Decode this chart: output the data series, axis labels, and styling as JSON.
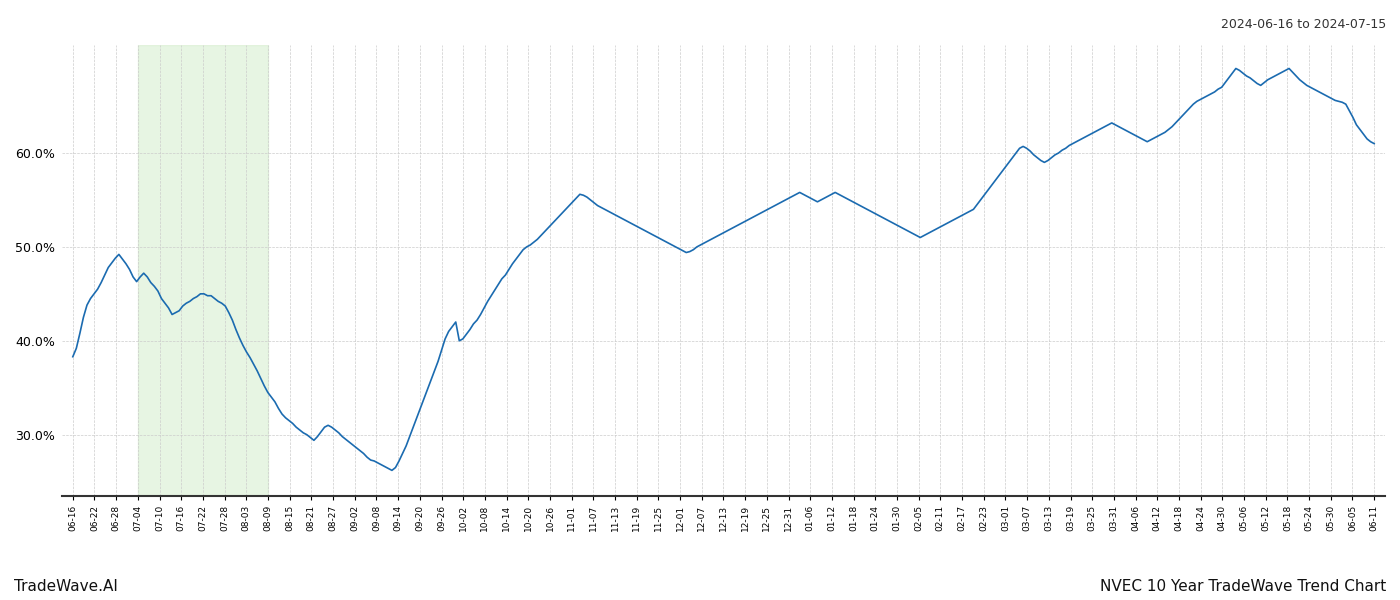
{
  "title_top_right": "2024-06-16 to 2024-07-15",
  "title_bottom_left": "TradeWave.AI",
  "title_bottom_right": "NVEC 10 Year TradeWave Trend Chart",
  "line_color": "#1b6bb0",
  "line_width": 1.2,
  "bg_color": "#ffffff",
  "grid_color": "#cccccc",
  "shade_color": "#d4edcc",
  "shade_alpha": 0.55,
  "ylim": [
    0.235,
    0.715
  ],
  "yticks": [
    0.3,
    0.4,
    0.5,
    0.6
  ],
  "xtick_labels": [
    "06-16",
    "06-22",
    "06-28",
    "07-04",
    "07-10",
    "07-16",
    "07-22",
    "07-28",
    "08-03",
    "08-09",
    "08-15",
    "08-21",
    "08-27",
    "09-02",
    "09-08",
    "09-14",
    "09-20",
    "09-26",
    "10-02",
    "10-08",
    "10-14",
    "10-20",
    "10-26",
    "11-01",
    "11-07",
    "11-13",
    "11-19",
    "11-25",
    "12-01",
    "12-07",
    "12-13",
    "12-19",
    "12-25",
    "12-31",
    "01-06",
    "01-12",
    "01-18",
    "01-24",
    "01-30",
    "02-05",
    "02-11",
    "02-17",
    "02-23",
    "03-01",
    "03-07",
    "03-13",
    "03-19",
    "03-25",
    "03-31",
    "04-06",
    "04-12",
    "04-18",
    "04-24",
    "04-30",
    "05-06",
    "05-12",
    "05-18",
    "05-24",
    "05-30",
    "06-05",
    "06-11"
  ],
  "shade_xstart": 3,
  "shade_xend": 9,
  "values": [
    0.383,
    0.392,
    0.408,
    0.425,
    0.438,
    0.445,
    0.45,
    0.455,
    0.462,
    0.47,
    0.478,
    0.483,
    0.488,
    0.492,
    0.487,
    0.482,
    0.476,
    0.468,
    0.463,
    0.468,
    0.472,
    0.468,
    0.462,
    0.458,
    0.453,
    0.445,
    0.44,
    0.435,
    0.428,
    0.43,
    0.432,
    0.437,
    0.44,
    0.442,
    0.445,
    0.447,
    0.45,
    0.45,
    0.448,
    0.448,
    0.445,
    0.442,
    0.44,
    0.437,
    0.43,
    0.422,
    0.412,
    0.403,
    0.395,
    0.388,
    0.382,
    0.375,
    0.368,
    0.36,
    0.352,
    0.345,
    0.34,
    0.335,
    0.328,
    0.322,
    0.318,
    0.315,
    0.312,
    0.308,
    0.305,
    0.302,
    0.3,
    0.297,
    0.294,
    0.298,
    0.303,
    0.308,
    0.31,
    0.308,
    0.305,
    0.302,
    0.298,
    0.295,
    0.292,
    0.289,
    0.286,
    0.283,
    0.28,
    0.276,
    0.273,
    0.272,
    0.27,
    0.268,
    0.266,
    0.264,
    0.262,
    0.265,
    0.272,
    0.28,
    0.288,
    0.298,
    0.308,
    0.318,
    0.328,
    0.338,
    0.348,
    0.358,
    0.368,
    0.378,
    0.39,
    0.402,
    0.41,
    0.415,
    0.42,
    0.4,
    0.402,
    0.407,
    0.412,
    0.418,
    0.422,
    0.428,
    0.435,
    0.442,
    0.448,
    0.454,
    0.46,
    0.466,
    0.47,
    0.476,
    0.482,
    0.487,
    0.492,
    0.497,
    0.5,
    0.502,
    0.505,
    0.508,
    0.512,
    0.516,
    0.52,
    0.524,
    0.528,
    0.532,
    0.536,
    0.54,
    0.544,
    0.548,
    0.552,
    0.556,
    0.555,
    0.553,
    0.55,
    0.547,
    0.544,
    0.542,
    0.54,
    0.538,
    0.536,
    0.534,
    0.532,
    0.53,
    0.528,
    0.526,
    0.524,
    0.522,
    0.52,
    0.518,
    0.516,
    0.514,
    0.512,
    0.51,
    0.508,
    0.506,
    0.504,
    0.502,
    0.5,
    0.498,
    0.496,
    0.494,
    0.495,
    0.497,
    0.5,
    0.502,
    0.504,
    0.506,
    0.508,
    0.51,
    0.512,
    0.514,
    0.516,
    0.518,
    0.52,
    0.522,
    0.524,
    0.526,
    0.528,
    0.53,
    0.532,
    0.534,
    0.536,
    0.538,
    0.54,
    0.542,
    0.544,
    0.546,
    0.548,
    0.55,
    0.552,
    0.554,
    0.556,
    0.558,
    0.556,
    0.554,
    0.552,
    0.55,
    0.548,
    0.55,
    0.552,
    0.554,
    0.556,
    0.558,
    0.556,
    0.554,
    0.552,
    0.55,
    0.548,
    0.546,
    0.544,
    0.542,
    0.54,
    0.538,
    0.536,
    0.534,
    0.532,
    0.53,
    0.528,
    0.526,
    0.524,
    0.522,
    0.52,
    0.518,
    0.516,
    0.514,
    0.512,
    0.51,
    0.512,
    0.514,
    0.516,
    0.518,
    0.52,
    0.522,
    0.524,
    0.526,
    0.528,
    0.53,
    0.532,
    0.534,
    0.536,
    0.538,
    0.54,
    0.545,
    0.55,
    0.555,
    0.56,
    0.565,
    0.57,
    0.575,
    0.58,
    0.585,
    0.59,
    0.595,
    0.6,
    0.605,
    0.607,
    0.605,
    0.602,
    0.598,
    0.595,
    0.592,
    0.59,
    0.592,
    0.595,
    0.598,
    0.6,
    0.603,
    0.605,
    0.608,
    0.61,
    0.612,
    0.614,
    0.616,
    0.618,
    0.62,
    0.622,
    0.624,
    0.626,
    0.628,
    0.63,
    0.632,
    0.63,
    0.628,
    0.626,
    0.624,
    0.622,
    0.62,
    0.618,
    0.616,
    0.614,
    0.612,
    0.614,
    0.616,
    0.618,
    0.62,
    0.622,
    0.625,
    0.628,
    0.632,
    0.636,
    0.64,
    0.644,
    0.648,
    0.652,
    0.655,
    0.657,
    0.659,
    0.661,
    0.663,
    0.665,
    0.668,
    0.67,
    0.675,
    0.68,
    0.685,
    0.69,
    0.688,
    0.685,
    0.682,
    0.68,
    0.677,
    0.674,
    0.672,
    0.675,
    0.678,
    0.68,
    0.682,
    0.684,
    0.686,
    0.688,
    0.69,
    0.686,
    0.682,
    0.678,
    0.675,
    0.672,
    0.67,
    0.668,
    0.666,
    0.664,
    0.662,
    0.66,
    0.658,
    0.656,
    0.655,
    0.654,
    0.652,
    0.645,
    0.638,
    0.63,
    0.625,
    0.62,
    0.615,
    0.612,
    0.61
  ]
}
